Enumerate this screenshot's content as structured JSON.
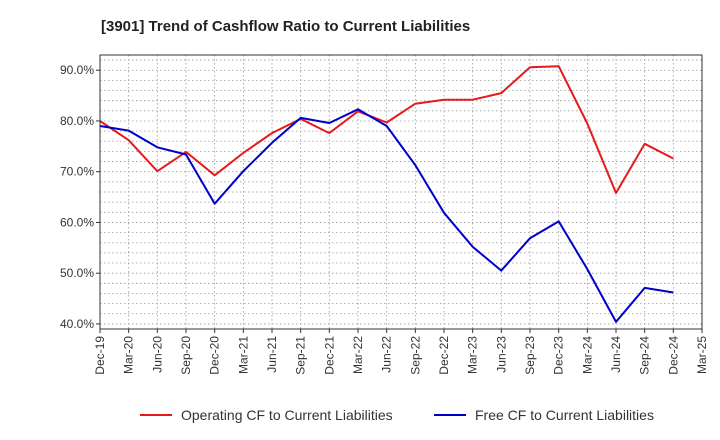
{
  "chart_data": {
    "type": "line",
    "title": "[3901]  Trend of Cashflow Ratio to Current Liabilities",
    "xlabel": "",
    "ylabel": "",
    "categories": [
      "Dec-19",
      "Mar-20",
      "Jun-20",
      "Sep-20",
      "Dec-20",
      "Mar-21",
      "Jun-21",
      "Sep-21",
      "Dec-21",
      "Mar-22",
      "Jun-22",
      "Sep-22",
      "Dec-22",
      "Mar-23",
      "Jun-23",
      "Sep-23",
      "Dec-23",
      "Mar-24",
      "Jun-24",
      "Sep-24",
      "Dec-24",
      "Mar-25"
    ],
    "ylim": [
      39,
      93
    ],
    "yticks": [
      40,
      50,
      60,
      70,
      80,
      90
    ],
    "ytick_labels": [
      "40.0%",
      "50.0%",
      "60.0%",
      "70.0%",
      "80.0%",
      "90.0%"
    ],
    "grid": true,
    "legend_position": "bottom",
    "series": [
      {
        "name": "Operating CF to Current Liabilities",
        "color": "#e41a1c",
        "values": [
          80.0,
          76.2,
          70.1,
          73.9,
          69.3,
          73.7,
          77.6,
          80.4,
          77.6,
          81.9,
          79.7,
          83.4,
          84.2,
          84.2,
          85.5,
          90.6,
          90.8,
          79.5,
          65.8,
          75.5,
          72.6,
          null
        ]
      },
      {
        "name": "Free CF to Current Liabilities",
        "color": "#0000cc",
        "values": [
          79.0,
          78.1,
          74.8,
          73.4,
          63.7,
          70.1,
          75.7,
          80.6,
          79.6,
          82.3,
          79.0,
          71.3,
          61.9,
          55.2,
          50.5,
          56.9,
          60.2,
          50.8,
          40.4,
          47.1,
          46.2,
          null
        ]
      }
    ]
  }
}
